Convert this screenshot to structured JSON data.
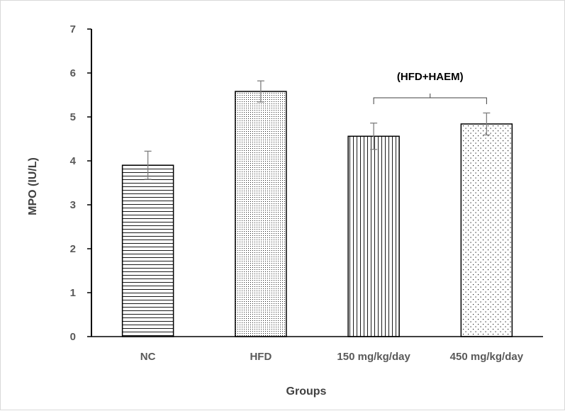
{
  "chart_data": {
    "type": "bar",
    "title": "",
    "xlabel": "Groups",
    "ylabel": "MPO  (IU/L)",
    "categories": [
      "NC",
      "HFD",
      "150 mg/kg/day",
      "450 mg/kg/day"
    ],
    "values": [
      3.9,
      5.58,
      4.56,
      4.84
    ],
    "error": [
      0.32,
      0.24,
      0.3,
      0.25
    ],
    "ylim": [
      0,
      7
    ],
    "yticks": [
      "0",
      "1",
      "2",
      "3",
      "4",
      "5",
      "6",
      "7"
    ],
    "patterns": [
      "horizontal-lines",
      "fine-dots",
      "vertical-lines",
      "sparse-dots"
    ],
    "grid": false,
    "annotations": [
      {
        "text": "(HFD+HAEM)",
        "bracket_from": "150 mg/kg/day",
        "bracket_to": "450 mg/kg/day"
      }
    ],
    "colors": {
      "bar_fill": "#ffffff",
      "bar_edge": "#000000",
      "error_bar": "#7f7f7f",
      "tick_text": "#595959"
    }
  }
}
